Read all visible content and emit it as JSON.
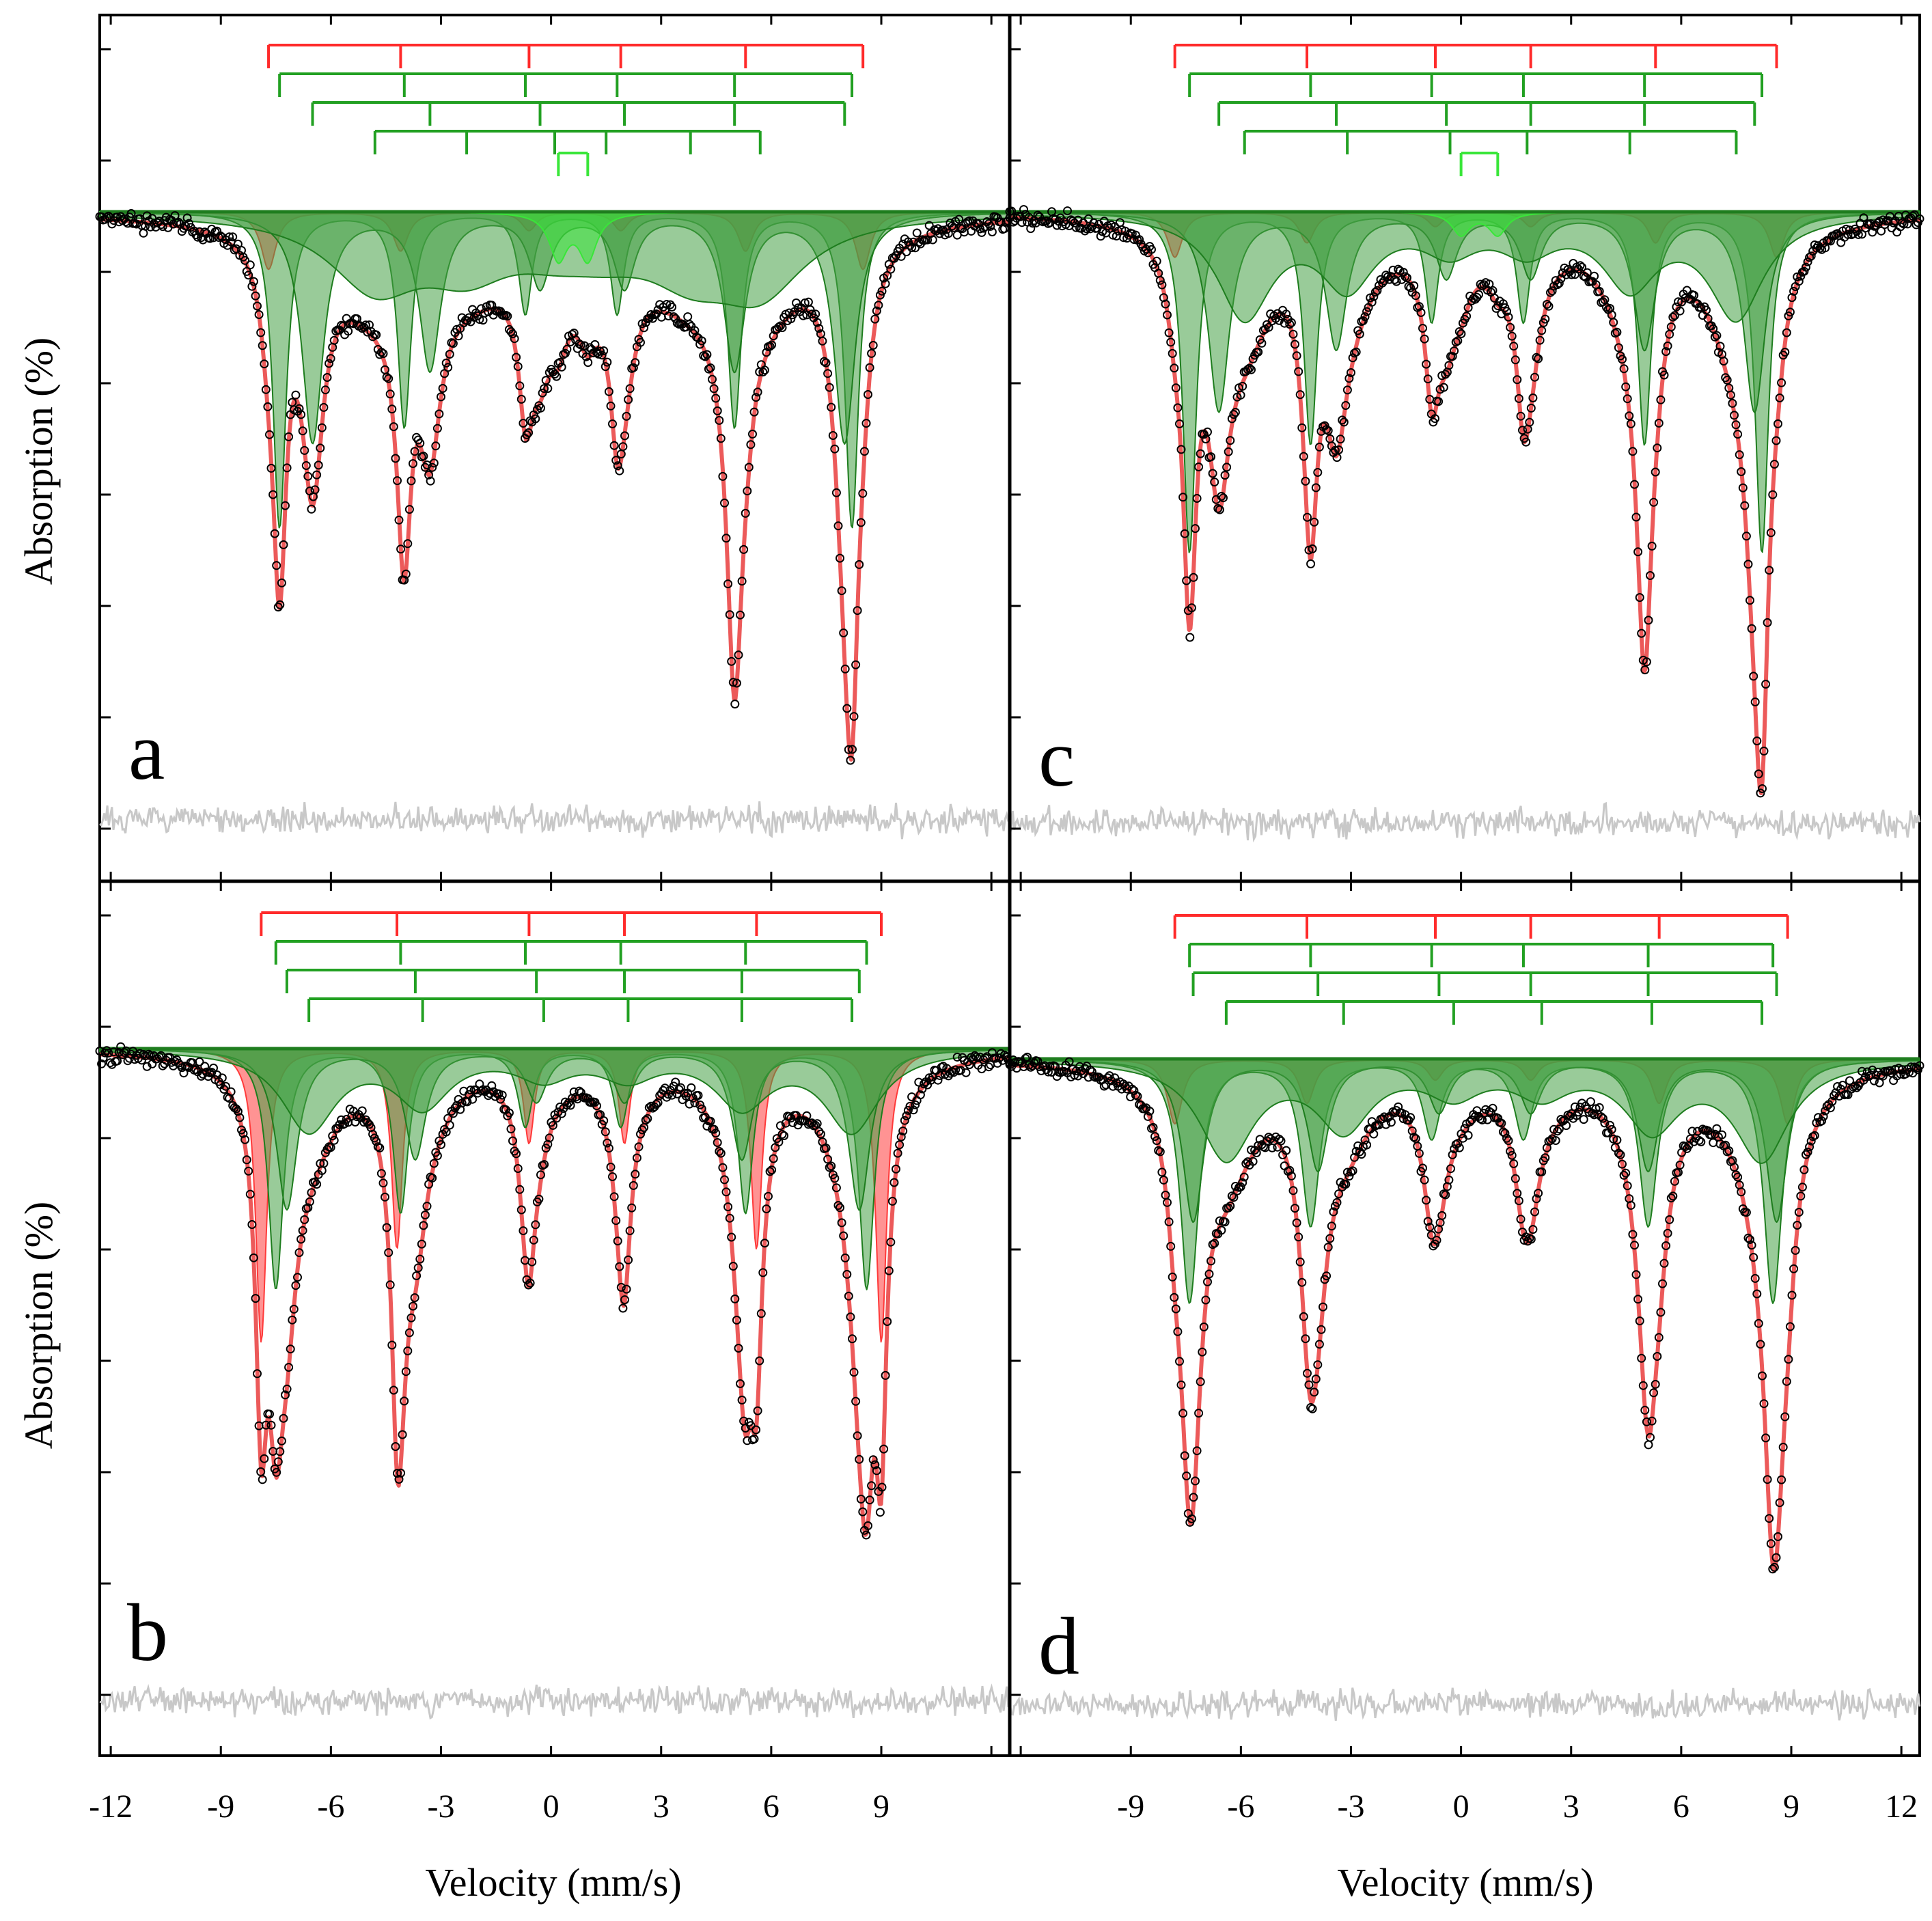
{
  "figure": {
    "ylabel": "Absorption (%)",
    "xlabel": "Velocity (mm/s)",
    "xlim": [
      -12.3,
      12.5
    ],
    "xticks_left": [
      "-12",
      "-9",
      "-6",
      "-3",
      "0",
      "3",
      "6",
      "9"
    ],
    "xtick_values_left": [
      -12,
      -9,
      -6,
      -3,
      0,
      3,
      6,
      9
    ],
    "xticks_right": [
      "-9",
      "-6",
      "-3",
      "0",
      "3",
      "6",
      "9",
      "12"
    ],
    "xtick_values_right": [
      -9,
      -6,
      -3,
      0,
      3,
      6,
      9,
      12
    ],
    "colors": {
      "fit": "#ec5a5a",
      "hematite": "#ff3a3a",
      "sextet": "#1e7d1e",
      "sextet_fill": "#45a045",
      "doublet": "#39e639",
      "residual": "#c8c8c8",
      "points": "#000000"
    }
  },
  "chart_data": [
    {
      "panel": "a",
      "type": "line",
      "xlabel": "Velocity (mm/s)",
      "ylabel": "Absorption (%)",
      "series": [
        {
          "name": "hematite sextet",
          "color": "#ff3a3a",
          "lines": [
            -7.7,
            -4.1,
            -0.6,
            1.9,
            5.3,
            8.5
          ],
          "depth": 0.1,
          "width": 0.25
        },
        {
          "name": "sextet 1",
          "color": "#1e7d1e",
          "lines": [
            -7.4,
            -4.0,
            -0.7,
            1.8,
            5.0,
            8.2
          ],
          "depth": 0.55,
          "width": 0.22
        },
        {
          "name": "sextet 2",
          "color": "#1e7d1e",
          "lines": [
            -6.5,
            -3.3,
            -0.3,
            2.0,
            5.0,
            8.0
          ],
          "depth": 0.4,
          "width": 0.35
        },
        {
          "name": "sextet 3",
          "color": "#1e7d1e",
          "lines": [
            -4.8,
            -2.3,
            0.1,
            1.5,
            3.8,
            5.7
          ],
          "depth": 0.12,
          "width": 1.5
        },
        {
          "name": "doublet",
          "color": "#39e639",
          "lines": [
            0.2,
            1.0
          ],
          "depth": 0.08,
          "width": 0.3
        }
      ]
    },
    {
      "panel": "b",
      "type": "line",
      "xlabel": "Velocity (mm/s)",
      "ylabel": "Absorption (%)",
      "series": [
        {
          "name": "hematite sextet",
          "color": "#ff3a3a",
          "lines": [
            -7.9,
            -4.2,
            -0.6,
            2.0,
            5.6,
            9.0
          ],
          "depth": 0.55,
          "width": 0.18
        },
        {
          "name": "sextet 1",
          "color": "#1e7d1e",
          "lines": [
            -7.5,
            -4.1,
            -0.7,
            1.9,
            5.3,
            8.6
          ],
          "depth": 0.45,
          "width": 0.25
        },
        {
          "name": "sextet 2",
          "color": "#1e7d1e",
          "lines": [
            -7.2,
            -3.7,
            -0.4,
            2.0,
            5.2,
            8.4
          ],
          "depth": 0.3,
          "width": 0.35
        },
        {
          "name": "sextet 3",
          "color": "#1e7d1e",
          "lines": [
            -6.6,
            -3.5,
            -0.2,
            2.1,
            5.2,
            8.2
          ],
          "depth": 0.15,
          "width": 0.9
        }
      ]
    },
    {
      "panel": "c",
      "type": "line",
      "xlabel": "Velocity (mm/s)",
      "ylabel": "Absorption (%)",
      "series": [
        {
          "name": "hematite sextet",
          "color": "#ff3a3a",
          "lines": [
            -7.8,
            -4.2,
            -0.7,
            1.9,
            5.3,
            8.6
          ],
          "depth": 0.08,
          "width": 0.25
        },
        {
          "name": "sextet 1",
          "color": "#1e7d1e",
          "lines": [
            -7.4,
            -4.1,
            -0.8,
            1.7,
            5.0,
            8.2
          ],
          "depth": 0.6,
          "width": 0.22
        },
        {
          "name": "sextet 2",
          "color": "#1e7d1e",
          "lines": [
            -6.6,
            -3.4,
            -0.4,
            1.9,
            5.0,
            8.0
          ],
          "depth": 0.35,
          "width": 0.35
        },
        {
          "name": "sextet 3",
          "color": "#1e7d1e",
          "lines": [
            -5.9,
            -3.1,
            -0.3,
            1.8,
            4.6,
            7.5
          ],
          "depth": 0.18,
          "width": 0.9
        },
        {
          "name": "doublet",
          "color": "#39e639",
          "lines": [
            0.0,
            1.0
          ],
          "depth": 0.04,
          "width": 0.3
        }
      ]
    },
    {
      "panel": "d",
      "type": "line",
      "xlabel": "Velocity (mm/s)",
      "ylabel": "Absorption (%)",
      "series": [
        {
          "name": "hematite sextet",
          "color": "#ff3a3a",
          "lines": [
            -7.8,
            -4.2,
            -0.7,
            1.9,
            5.4,
            8.9
          ],
          "depth": 0.12,
          "width": 0.25
        },
        {
          "name": "sextet 1",
          "color": "#1e7d1e",
          "lines": [
            -7.4,
            -4.1,
            -0.8,
            1.7,
            5.1,
            8.5
          ],
          "depth": 0.45,
          "width": 0.3
        },
        {
          "name": "sextet 2",
          "color": "#1e7d1e",
          "lines": [
            -7.3,
            -3.9,
            -0.6,
            1.9,
            5.1,
            8.6
          ],
          "depth": 0.3,
          "width": 0.35
        },
        {
          "name": "sextet 3",
          "color": "#1e7d1e",
          "lines": [
            -6.4,
            -3.2,
            -0.2,
            2.2,
            5.2,
            8.2
          ],
          "depth": 0.18,
          "width": 0.9
        }
      ]
    }
  ]
}
